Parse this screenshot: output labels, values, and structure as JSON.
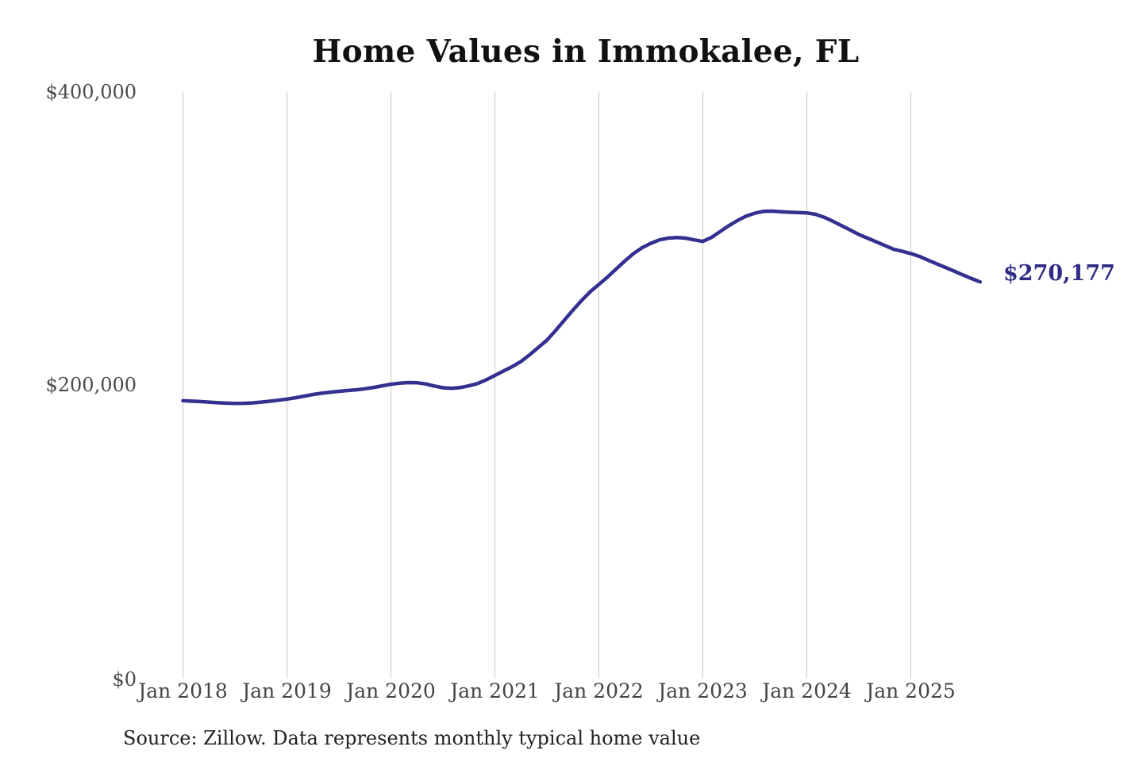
{
  "page": {
    "background": "#ffffff"
  },
  "chart_data": {
    "type": "line",
    "title": "Home Values in Immokalee, FL",
    "series_name": "Monthly typical home value",
    "source_note": "Source: Zillow. Data represents monthly typical home value",
    "x_start": "Jan 2018",
    "x_end": "Sep 2025",
    "frequency": "monthly",
    "x_tick_labels": [
      "Jan 2018",
      "Jan 2019",
      "Jan 2020",
      "Jan 2021",
      "Jan 2022",
      "Jan 2023",
      "Jan 2024",
      "Jan 2025"
    ],
    "y_tick_labels": [
      "$400,000",
      "$200,000",
      "$0"
    ],
    "y_tick_values": [
      400000,
      200000,
      0
    ],
    "ylim": [
      0,
      400000
    ],
    "grid": "vertical-only",
    "legend": "none",
    "line_color": "#333090",
    "gridline_color": "#c7c7c7",
    "end_label": "$270,177",
    "end_label_color": "#2d2b85",
    "last_value": 270177,
    "values": [
      189300,
      189000,
      188700,
      188300,
      187900,
      187600,
      187400,
      187500,
      187800,
      188300,
      188900,
      189600,
      190400,
      191300,
      192400,
      193500,
      194400,
      195100,
      195700,
      196200,
      196700,
      197400,
      198300,
      199400,
      200500,
      201200,
      201600,
      201500,
      200700,
      199300,
      198100,
      197700,
      198200,
      199400,
      201000,
      203500,
      206500,
      209500,
      212500,
      216000,
      220500,
      225500,
      230500,
      237000,
      244000,
      251000,
      257500,
      263500,
      268500,
      273500,
      279000,
      284500,
      289500,
      293500,
      296500,
      298800,
      300000,
      300400,
      300000,
      298800,
      297800,
      300500,
      304500,
      308500,
      312000,
      315000,
      317000,
      318200,
      318400,
      318000,
      317600,
      317400,
      317200,
      316200,
      314200,
      311500,
      308500,
      305500,
      302500,
      300000,
      297500,
      295000,
      292500,
      291000,
      289500,
      287500,
      285000,
      282500,
      280000,
      277500,
      275000,
      272500,
      270177
    ]
  }
}
